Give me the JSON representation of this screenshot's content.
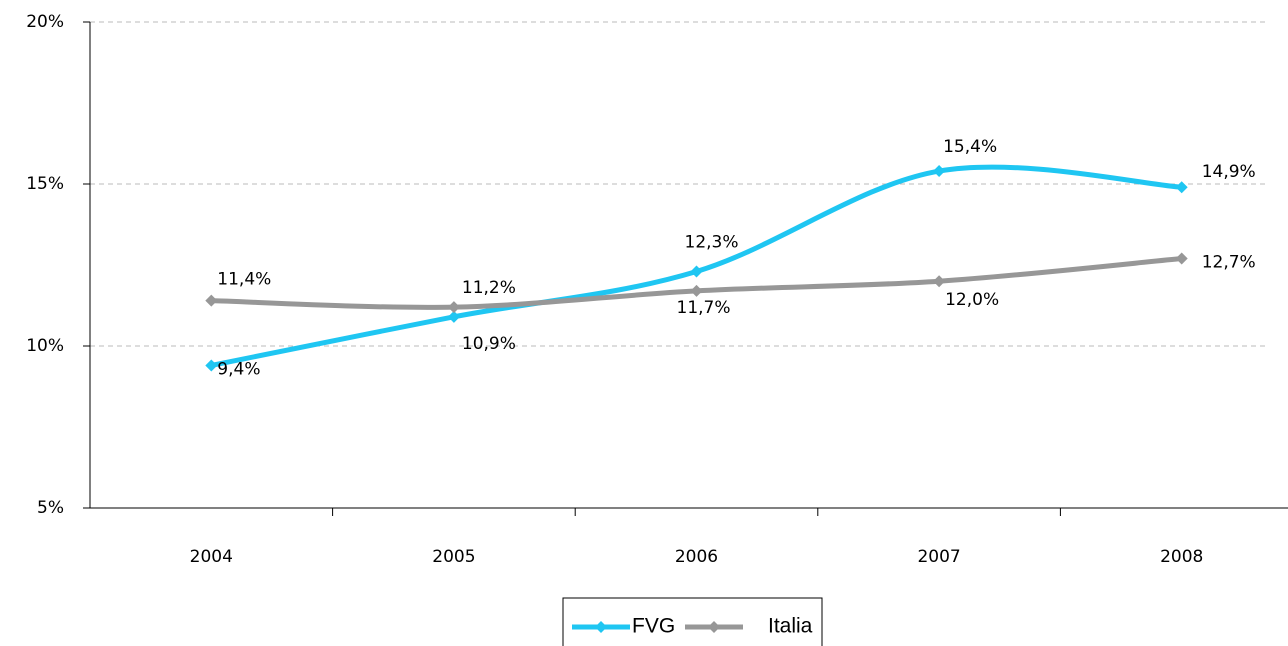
{
  "chart_data": {
    "type": "line",
    "categories": [
      "2004",
      "2005",
      "2006",
      "2007",
      "2008"
    ],
    "series": [
      {
        "name": "FVG",
        "color": "#1fc6f2",
        "values": [
          9.4,
          10.9,
          12.3,
          15.4,
          14.9
        ],
        "value_labels": [
          "9,4%",
          "10,9%",
          "12,3%",
          "15,4%",
          "14,9%"
        ]
      },
      {
        "name": "Italia",
        "color": "#979797",
        "values": [
          11.4,
          11.2,
          11.7,
          12.0,
          12.7
        ],
        "value_labels": [
          "11,4%",
          "11,2%",
          "11,7%",
          "12,0%",
          "12,7%"
        ]
      }
    ],
    "ylim": [
      5,
      20
    ],
    "yticks": [
      {
        "value": 5,
        "label": "5%"
      },
      {
        "value": 10,
        "label": "10%"
      },
      {
        "value": 15,
        "label": "15%"
      },
      {
        "value": 20,
        "label": "20%"
      }
    ],
    "grid": true,
    "legend": "bottom"
  }
}
